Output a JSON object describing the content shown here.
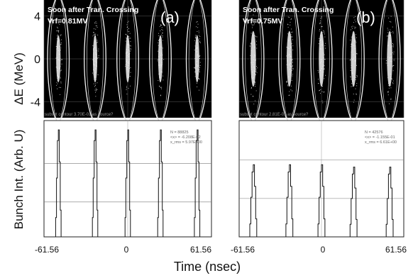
{
  "figure": {
    "y_axis_top_label": "ΔE (MeV)",
    "y_axis_bottom_label": "Bunch Int. (Arb. U)",
    "x_axis_label": "Time  (nsec)"
  },
  "chart_data": [
    {
      "id": "a",
      "panel_label": "(a)",
      "annotation_line1": "Soon after Tran. Crossing",
      "annotation_line2": "Vrf=0.81MV",
      "overlay_text": "subset contour 3.70E-01 as source?",
      "stats": [
        "N = 88825",
        "<x> = -6.208E-02",
        "x_rms = 5.97E+00"
      ],
      "phase_space": {
        "type": "scatter",
        "ylabel": "ΔE (MeV)",
        "y_ticks": [
          4,
          0,
          -4
        ],
        "ylim": [
          -5.5,
          5.5
        ],
        "bunch_centers": [
          -51,
          -24,
          0,
          24,
          51
        ],
        "bunch_half_width": 1.6,
        "bunch_half_height": 2.2,
        "separatrix_half_width": 8.5
      },
      "profile": {
        "type": "line",
        "ylabel": "Bunch Int. (Arb. U)",
        "x_ticks": [
          "-61.56",
          "0",
          "61.56"
        ],
        "xlim": [
          -61.56,
          61.56
        ],
        "ylim": [
          0,
          1
        ],
        "peaks_x": [
          -51,
          -24,
          0,
          24,
          51
        ],
        "peaks_height": [
          0.92,
          0.92,
          0.92,
          0.92,
          0.92
        ],
        "peak_half_width": 2.0,
        "h_grid": [
          0.63,
          0.3
        ]
      }
    },
    {
      "id": "b",
      "panel_label": "(b)",
      "annotation_line1": "Soon after Tran. Crossing",
      "annotation_line2": "Vrf=0.75MV",
      "overlay_text": "subset contour 2.81E-01 as source?",
      "stats": [
        "N = 42576",
        "<x> = -1.155E-01",
        "x_rms = 6.61E+00"
      ],
      "phase_space": {
        "type": "scatter",
        "ylabel": "ΔE (MeV)",
        "y_ticks": [
          4,
          0,
          -4
        ],
        "ylim": [
          -5.5,
          5.5
        ],
        "bunch_centers": [
          -51,
          -24,
          0,
          24,
          51
        ],
        "bunch_half_width": 2.0,
        "bunch_half_height": 2.6,
        "separatrix_half_width": 8.5
      },
      "profile": {
        "type": "line",
        "ylabel": "Bunch Int. (Arb. U)",
        "x_ticks": [
          "-61.56",
          "0",
          "61.56"
        ],
        "xlim": [
          -61.56,
          61.56
        ],
        "ylim": [
          0,
          1
        ],
        "peaks_x": [
          -51,
          -24,
          0,
          24,
          51
        ],
        "peaks_height": [
          0.62,
          0.62,
          0.62,
          0.6,
          0.6
        ],
        "peak_half_width": 2.6,
        "h_grid": [
          0.66,
          0.33
        ]
      }
    }
  ]
}
